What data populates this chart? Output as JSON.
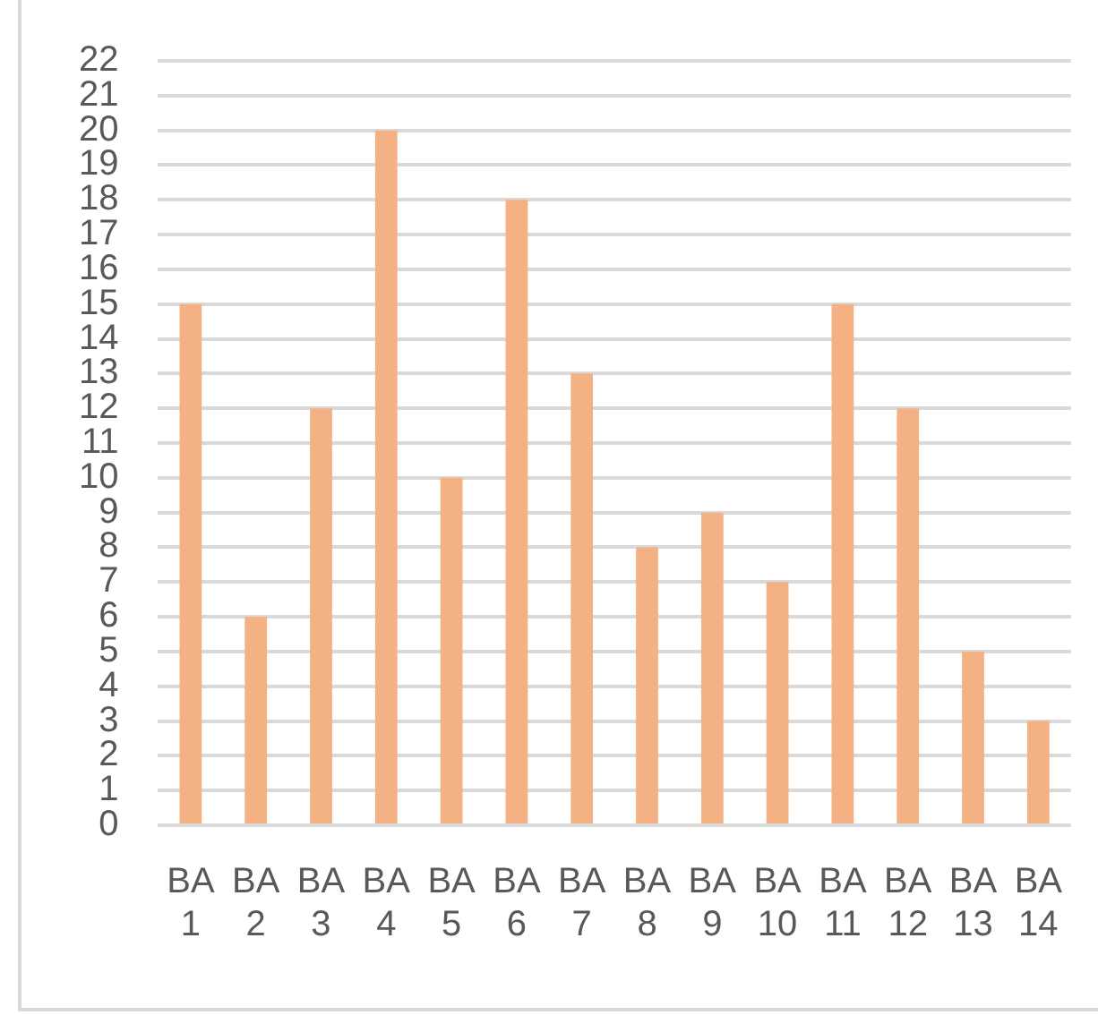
{
  "chart_data": {
    "type": "bar",
    "categories": [
      "BA 1",
      "BA 2",
      "BA 3",
      "BA 4",
      "BA 5",
      "BA 6",
      "BA 7",
      "BA 8",
      "BA 9",
      "BA 10",
      "BA 11",
      "BA 12",
      "BA 13",
      "BA 14"
    ],
    "values": [
      15,
      6,
      12,
      20,
      10,
      18,
      13,
      8,
      9,
      7,
      15,
      12,
      5,
      3
    ],
    "color": "#f4b183",
    "ylim": [
      0,
      22
    ],
    "yticks": [
      0,
      1,
      2,
      3,
      4,
      5,
      6,
      7,
      8,
      9,
      10,
      11,
      12,
      13,
      14,
      15,
      16,
      17,
      18,
      19,
      20,
      21,
      22
    ],
    "grid": "y",
    "legend": false
  }
}
